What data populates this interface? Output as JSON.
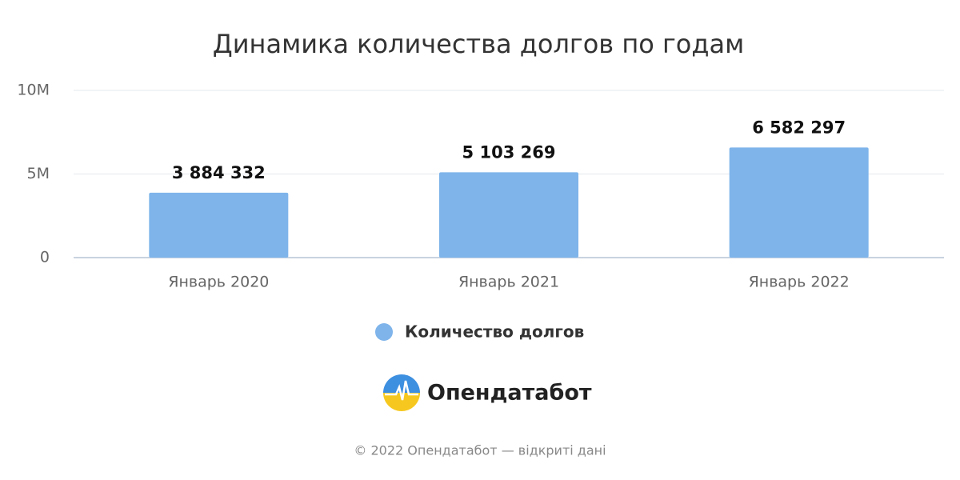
{
  "chart_data": {
    "type": "bar",
    "title": "Динамика количества долгов по годам",
    "categories": [
      "Январь 2020",
      "Январь 2021",
      "Январь 2022"
    ],
    "series": [
      {
        "name": "Количество долгов",
        "color": "#7eb4ea",
        "values": [
          3884332,
          5103269,
          6582297
        ],
        "value_labels": [
          "3 884 332",
          "5 103 269",
          "6 582 297"
        ]
      }
    ],
    "ylim": [
      0,
      10000000
    ],
    "yticks": [
      0,
      {
        "value": 5000000,
        "label": "5M"
      },
      {
        "value": 10000000,
        "label": "10M"
      }
    ],
    "grid": true,
    "legend": "bottom"
  },
  "logo": "Опендатабот",
  "footer": "© 2022 Опендатабот — відкриті дані"
}
